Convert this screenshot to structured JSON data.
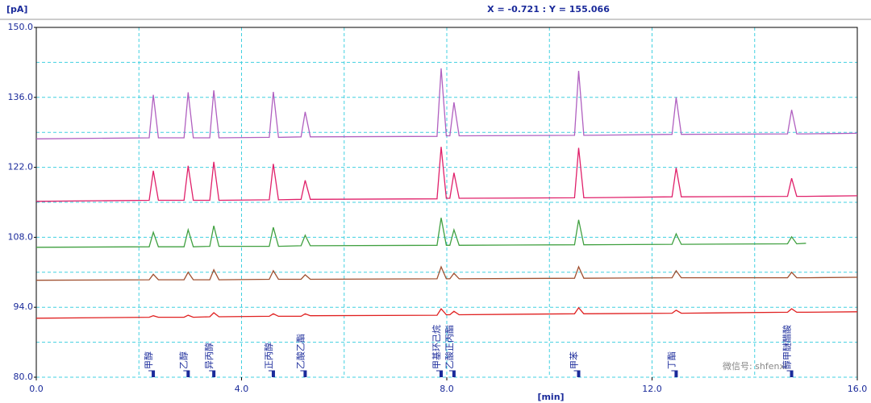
{
  "chart_data": {
    "type": "line",
    "y_label": "[pA]",
    "x_label": "[min]",
    "cursor_readout": "X = -0.721 : Y = 155.066",
    "watermark": "微信号: shfenxi",
    "grid": true,
    "xlim": [
      0,
      16
    ],
    "ylim": [
      80,
      150
    ],
    "xticks": [
      {
        "value": 0,
        "label": "0.0"
      },
      {
        "value": 4,
        "label": "4.0"
      },
      {
        "value": 8,
        "label": "8.0"
      },
      {
        "value": 12,
        "label": "12.0"
      },
      {
        "value": 16,
        "label": "16.0"
      }
    ],
    "yticks": [
      {
        "value": 80,
        "label": "80.0"
      },
      {
        "value": 94,
        "label": "94.0"
      },
      {
        "value": 108,
        "label": "108.0"
      },
      {
        "value": 122,
        "label": "122.0"
      },
      {
        "value": 136,
        "label": "136.0"
      },
      {
        "value": 150,
        "label": "150.0"
      }
    ],
    "xgrid": [
      0,
      2,
      4,
      6,
      8,
      10,
      12,
      14,
      16
    ],
    "ygrid": [
      80,
      87,
      94,
      101,
      108,
      115,
      122,
      129,
      136,
      143,
      150
    ],
    "x": [
      0,
      2.2,
      2.28,
      2.38,
      2.88,
      2.96,
      3.06,
      3.38,
      3.46,
      3.56,
      4.54,
      4.62,
      4.72,
      5.16,
      5.24,
      5.34,
      7.81,
      7.89,
      7.99,
      8.06,
      8.14,
      8.24,
      10.49,
      10.57,
      10.67,
      12.39,
      12.47,
      12.57,
      14.64,
      14.72,
      14.82,
      15.0,
      16.0
    ],
    "series": [
      {
        "color": "#b060c0",
        "values": [
          127.7,
          127.9,
          136.5,
          127.9,
          127.9,
          137.0,
          127.9,
          127.9,
          137.4,
          127.9,
          128.0,
          137.1,
          128.0,
          128.1,
          133.1,
          128.1,
          128.2,
          141.8,
          128.3,
          128.3,
          135.0,
          128.3,
          128.4,
          141.3,
          128.4,
          128.6,
          136.0,
          128.6,
          128.7,
          133.5,
          128.7,
          128.7,
          128.8
        ]
      },
      {
        "color": "#e0206a",
        "values": [
          115.2,
          115.4,
          121.3,
          115.4,
          115.4,
          122.3,
          115.4,
          115.4,
          123.1,
          115.4,
          115.5,
          122.7,
          115.5,
          115.6,
          119.4,
          115.6,
          115.7,
          126.1,
          115.8,
          115.8,
          120.9,
          115.8,
          115.9,
          125.9,
          115.9,
          116.1,
          121.9,
          116.1,
          116.2,
          119.8,
          116.2,
          116.2,
          116.3
        ]
      },
      {
        "color": "#40a040",
        "values": [
          106.0,
          106.1,
          109.0,
          106.1,
          106.1,
          109.5,
          106.1,
          106.2,
          110.3,
          106.2,
          106.2,
          110.0,
          106.2,
          106.3,
          108.4,
          106.3,
          106.4,
          111.9,
          106.4,
          106.4,
          109.5,
          106.4,
          106.5,
          111.5,
          106.5,
          106.6,
          108.7,
          106.6,
          106.7,
          108.1,
          106.7,
          106.8,
          null
        ]
      },
      {
        "color": "#a05030",
        "values": [
          99.4,
          99.5,
          100.6,
          99.5,
          99.5,
          101.0,
          99.5,
          99.5,
          101.5,
          99.5,
          99.6,
          101.3,
          99.6,
          99.6,
          100.5,
          99.6,
          99.7,
          102.1,
          99.7,
          99.7,
          100.8,
          99.7,
          99.8,
          102.1,
          99.8,
          99.9,
          101.3,
          99.9,
          99.9,
          101.0,
          99.9,
          99.9,
          100.0
        ]
      },
      {
        "color": "#e02020",
        "values": [
          91.8,
          92.0,
          92.3,
          92.0,
          92.0,
          92.4,
          92.0,
          92.1,
          92.9,
          92.1,
          92.2,
          92.7,
          92.2,
          92.2,
          92.7,
          92.3,
          92.4,
          93.7,
          92.5,
          92.5,
          93.2,
          92.5,
          92.7,
          93.9,
          92.7,
          92.8,
          93.4,
          92.8,
          93.0,
          93.7,
          93.0,
          93.0,
          93.1
        ]
      }
    ],
    "peak_labels": [
      {
        "x": 2.28,
        "label": "甲醇"
      },
      {
        "x": 2.96,
        "label": "乙醇"
      },
      {
        "x": 3.46,
        "label": "异丙醇"
      },
      {
        "x": 4.62,
        "label": "正丙醇"
      },
      {
        "x": 5.24,
        "label": "乙酸乙酯"
      },
      {
        "x": 7.89,
        "label": "甲基环己烷"
      },
      {
        "x": 8.14,
        "label": "乙酸正丙酯"
      },
      {
        "x": 10.57,
        "label": "甲苯"
      },
      {
        "x": 12.47,
        "label": "丁酯"
      },
      {
        "x": 14.72,
        "label": "醇甲醚醋酸"
      }
    ]
  }
}
